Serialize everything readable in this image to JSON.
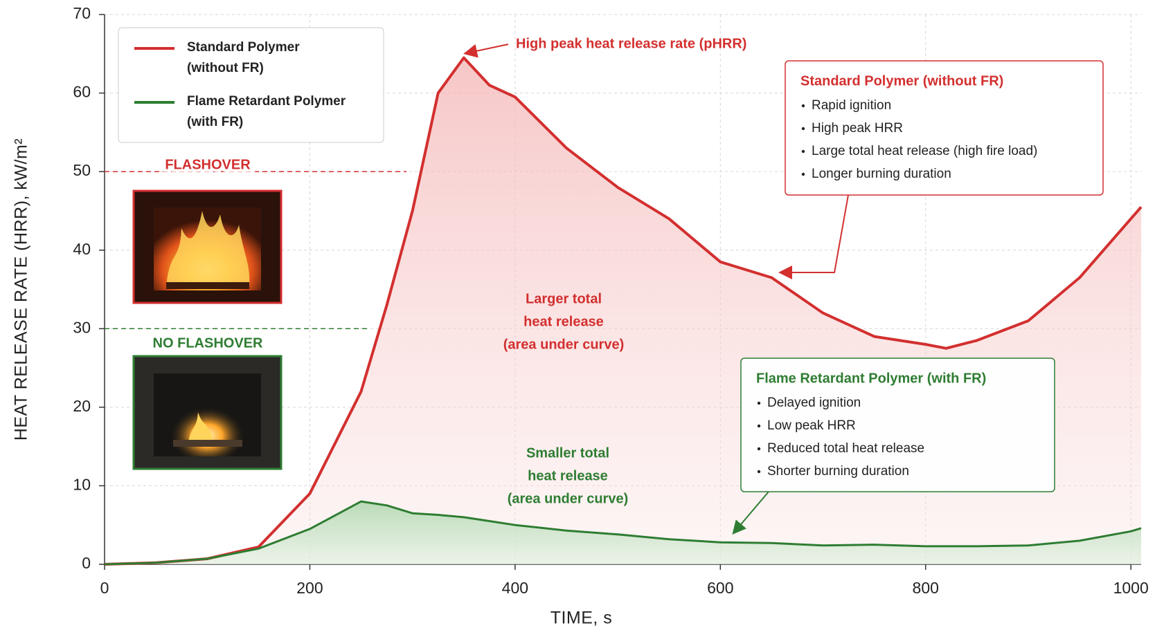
{
  "chart_data": {
    "type": "line",
    "x_label": "TIME, s",
    "y_label": "HEAT RELEASE RATE (HRR), kW/m²",
    "x": [
      0,
      50,
      100,
      150,
      200,
      250,
      275,
      300,
      325,
      350,
      375,
      400,
      450,
      500,
      550,
      600,
      650,
      700,
      750,
      800,
      820,
      850,
      900,
      950,
      1000,
      1010
    ],
    "series": [
      {
        "name": "Standard Polymer (without FR)",
        "color": "#d32f2f",
        "values": [
          0,
          0.2,
          0.7,
          2.2,
          9,
          22,
          33,
          45,
          60,
          64.5,
          61,
          59.5,
          53,
          48,
          44,
          38.5,
          36.5,
          32,
          29,
          28,
          27.5,
          28.5,
          31,
          36.5,
          44,
          45.5
        ]
      },
      {
        "name": "Flame Retardant Polymer (with FR)",
        "color": "#2e7d32",
        "values": [
          0,
          0.2,
          0.7,
          2,
          4.5,
          8,
          7.5,
          6.5,
          6.3,
          6,
          5.5,
          5,
          4.3,
          3.8,
          3.2,
          2.8,
          2.7,
          2.4,
          2.5,
          2.3,
          2.3,
          2.3,
          2.4,
          3,
          4.2,
          4.6
        ]
      }
    ],
    "xlim": [
      0,
      1010
    ],
    "ylim": [
      0,
      70
    ],
    "xticks": [
      0,
      200,
      400,
      600,
      800,
      1000
    ],
    "yticks": [
      0,
      10,
      20,
      30,
      40,
      50,
      60,
      70
    ],
    "grid": true,
    "legend": "upper left",
    "thresholds": [
      {
        "label": "FLASHOVER",
        "value": 50,
        "color": "#d32f2f"
      },
      {
        "label": "NO FLASHOVER",
        "value": 30,
        "color": "#2e7d32"
      }
    ],
    "annotations": [
      {
        "lines": [
          "High peak heat release rate (pHRR)"
        ],
        "color": "#d32f2f"
      },
      {
        "lines": [
          "Larger total",
          "heat release",
          "(area under curve)"
        ],
        "color": "#d32f2f"
      },
      {
        "lines": [
          "Smaller total",
          "heat release",
          "(area under curve)"
        ],
        "color": "#2e7d32"
      }
    ],
    "info_boxes": [
      {
        "title": "Standard Polymer (without FR)",
        "color": "#d32f2f",
        "items": [
          "Rapid ignition",
          "High peak HRR",
          "Large total heat release (high fire load)",
          "Longer burning duration"
        ]
      },
      {
        "title": "Flame Retardant Polymer (with FR)",
        "color": "#2e7d32",
        "items": [
          "Delayed ignition",
          "Low peak HRR",
          "Reduced total heat release",
          "Shorter burning duration"
        ]
      }
    ]
  }
}
